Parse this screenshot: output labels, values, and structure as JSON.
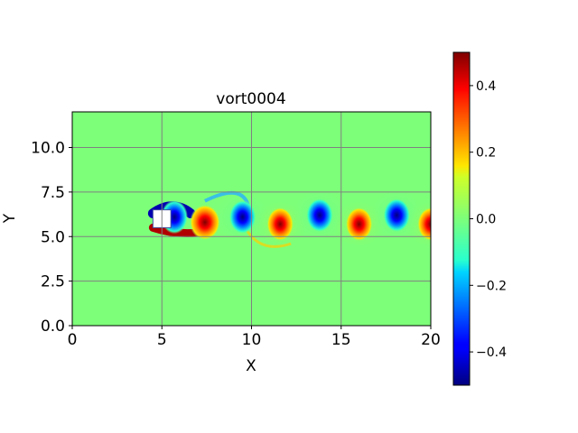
{
  "chart_data": {
    "type": "heatmap",
    "title": "vort0004",
    "xlabel": "X",
    "ylabel": "Y",
    "xlim": [
      0,
      20
    ],
    "ylim": [
      0,
      12
    ],
    "x_ticks": [
      0,
      5,
      10,
      15,
      20
    ],
    "x_tick_labels": [
      "0",
      "5",
      "10",
      "15",
      "20"
    ],
    "y_ticks": [
      0.0,
      2.5,
      5.0,
      7.5,
      10.0
    ],
    "y_tick_labels": [
      "0.0",
      "2.5",
      "5.0",
      "7.5",
      "10.0"
    ],
    "grid": true,
    "colormap": "jet",
    "colorbar": {
      "range": [
        -0.5,
        0.5
      ],
      "ticks": [
        -0.4,
        -0.2,
        0.0,
        0.2,
        0.4
      ],
      "tick_labels": [
        "−0.4",
        "−0.2",
        "0.0",
        "0.2",
        "0.4"
      ],
      "position": "right"
    },
    "obstacle": {
      "shape": "square",
      "x": [
        4.5,
        5.5
      ],
      "y": [
        5.5,
        6.5
      ]
    },
    "vortices": [
      {
        "x": 5.7,
        "y": 6.1,
        "sign": -1
      },
      {
        "x": 7.4,
        "y": 5.8,
        "sign": 1
      },
      {
        "x": 9.5,
        "y": 6.1,
        "sign": -1
      },
      {
        "x": 11.6,
        "y": 5.7,
        "sign": 1
      },
      {
        "x": 13.8,
        "y": 6.2,
        "sign": -1
      },
      {
        "x": 16.0,
        "y": 5.7,
        "sign": 1
      },
      {
        "x": 18.1,
        "y": 6.2,
        "sign": -1
      },
      {
        "x": 20.0,
        "y": 5.7,
        "sign": 1
      }
    ]
  }
}
